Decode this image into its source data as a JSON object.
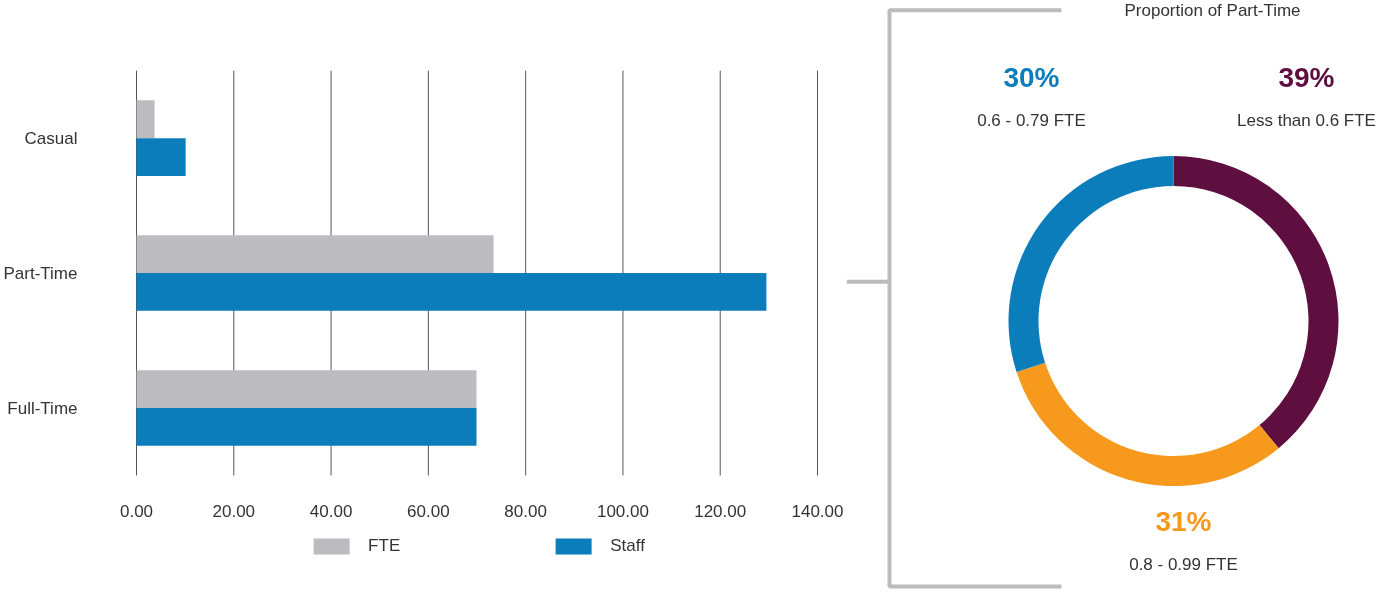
{
  "chart_data": [
    {
      "type": "bar",
      "orientation": "horizontal",
      "categories": [
        "Casual",
        "Part-Time",
        "Full-Time"
      ],
      "series": [
        {
          "name": "FTE",
          "color": "#bcbbc0",
          "values": [
            3.7,
            73.4,
            69.9
          ]
        },
        {
          "name": "Staff",
          "color": "#0c7dbb",
          "values": [
            10.1,
            129.5,
            69.9
          ]
        }
      ],
      "xlim": [
        0,
        140
      ],
      "xticks": [
        {
          "value": 0,
          "label": "0.00"
        },
        {
          "value": 20,
          "label": "20.00"
        },
        {
          "value": 40,
          "label": "40.00"
        },
        {
          "value": 60,
          "label": "60.00"
        },
        {
          "value": 80,
          "label": "80.00"
        },
        {
          "value": 100,
          "label": "100.00"
        },
        {
          "value": 120,
          "label": "120.00"
        },
        {
          "value": 140,
          "label": "140.00"
        }
      ],
      "grid": "x",
      "legend": "bottom"
    },
    {
      "type": "donut",
      "title": "Proportion of Part-Time",
      "categories": [
        "Less than 0.6 FTE",
        "0.8 - 0.99 FTE",
        "0.6 - 0.79 FTE"
      ],
      "values": [
        39,
        31,
        30
      ],
      "colors": [
        "#5e0f3f",
        "#f7991c",
        "#0c7dbb"
      ],
      "value_labels": [
        "39%",
        "31%",
        "30%"
      ]
    }
  ]
}
